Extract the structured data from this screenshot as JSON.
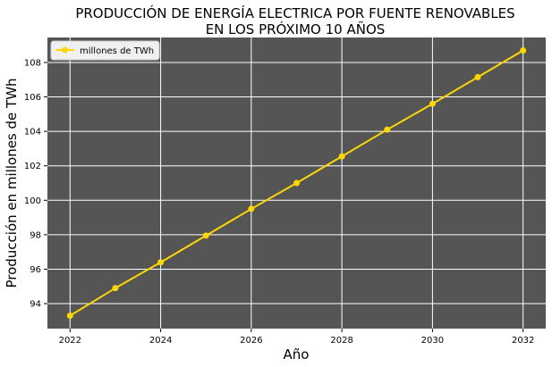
{
  "chart_data": {
    "type": "line",
    "title_line1": "PRODUCCIÓN DE ENERGÍA ELECTRICA POR FUENTE RENOVABLES",
    "title_line2": "EN LOS PRÓXIMO 10 AÑOS",
    "xlabel": "Año",
    "ylabel": "Producción en millones de TWh",
    "x": [
      2022,
      2023,
      2024,
      2025,
      2026,
      2027,
      2028,
      2029,
      2030,
      2031,
      2032
    ],
    "series": [
      {
        "name": "millones de TWh",
        "color": "#FFD700",
        "values": [
          93.3,
          94.9,
          96.4,
          97.95,
          99.5,
          101.0,
          102.55,
          104.1,
          105.6,
          107.15,
          108.7
        ]
      }
    ],
    "xlim": [
      2021.5,
      2032.5
    ],
    "ylim": [
      92.55,
      109.45
    ],
    "xticks": [
      "2022",
      "2024",
      "2026",
      "2028",
      "2030",
      "2032"
    ],
    "yticks": [
      "94",
      "96",
      "98",
      "100",
      "102",
      "104",
      "106",
      "108"
    ],
    "grid": true,
    "legend_position": "top-left",
    "plot_background": "#555555",
    "grid_color": "#ffffff"
  }
}
